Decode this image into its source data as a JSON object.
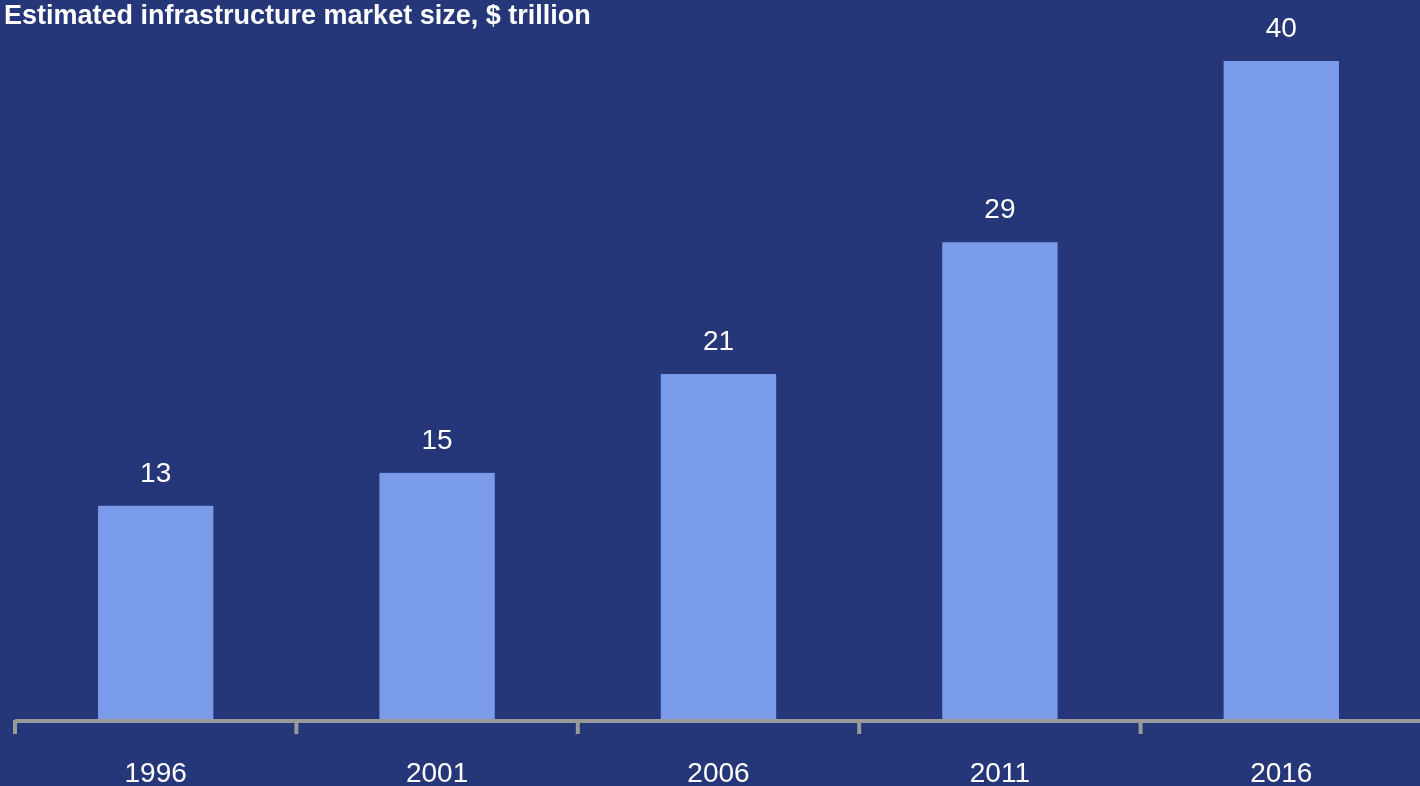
{
  "chart_data": {
    "type": "bar",
    "title": "Estimated infrastructure market size, $ trillion",
    "categories": [
      "1996",
      "2001",
      "2006",
      "2011",
      "2016"
    ],
    "values": [
      13,
      15,
      21,
      29,
      40
    ],
    "color": "#7a9aea",
    "data_labels": true
  }
}
